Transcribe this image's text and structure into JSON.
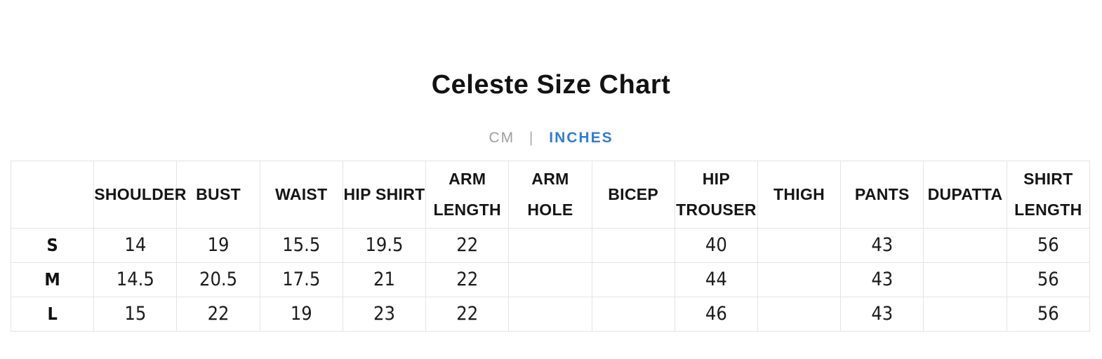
{
  "colors": {
    "accent_blue": "#2e7cdb",
    "muted_gray": "#9e9e9e",
    "table_border": "#e4e4e4",
    "text_dark": "#121212"
  },
  "header": {
    "title": "Celeste Size Chart"
  },
  "unit_toggle": {
    "cm": "CM",
    "separator": "|",
    "inches": "INCHES",
    "active_unit": "INCHES"
  },
  "size_chart": {
    "columns": [
      "",
      "SHOULDER",
      "BUST",
      "WAIST",
      "HIP SHIRT",
      "ARM LENGTH",
      "ARM HOLE",
      "BICEP",
      "HIP TROUSER",
      "THIGH",
      "PANTS",
      "DUPATTA",
      "SHIRT LENGTH"
    ],
    "rows": [
      {
        "size": "S",
        "values": [
          "14",
          "19",
          "15.5",
          "19.5",
          "22",
          "",
          "",
          "40",
          "",
          "43",
          "",
          "56"
        ]
      },
      {
        "size": "M",
        "values": [
          "14.5",
          "20.5",
          "17.5",
          "21",
          "22",
          "",
          "",
          "44",
          "",
          "43",
          "",
          "56"
        ]
      },
      {
        "size": "L",
        "values": [
          "15",
          "22",
          "19",
          "23",
          "22",
          "",
          "",
          "46",
          "",
          "43",
          "",
          "56"
        ]
      }
    ]
  }
}
